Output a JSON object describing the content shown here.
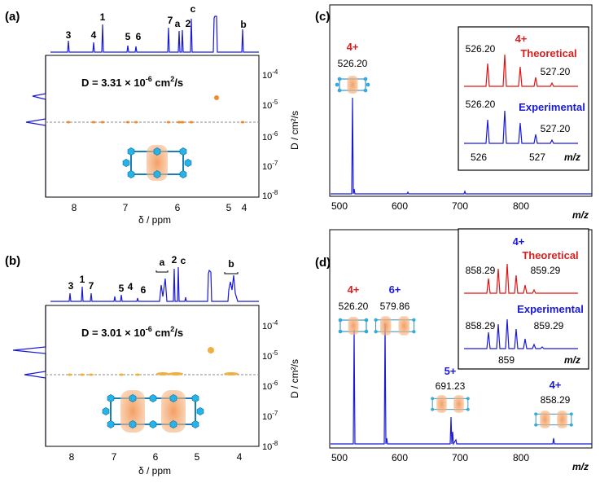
{
  "figure": {
    "panel_a": {
      "label": "(a)",
      "peaks": [
        "3",
        "4",
        "1",
        "5",
        "6",
        "7",
        "a",
        "2",
        "c",
        "b"
      ],
      "diffusion_text": "D = 3.31 × 10",
      "diffusion_exp": "-6",
      "diffusion_unit": " cm",
      "diffusion_unit_exp": "2",
      "diffusion_unit_end": "/s",
      "x_label": "δ / ppm",
      "x_ticks": [
        "8",
        "7",
        "6",
        "5",
        "4"
      ],
      "y_label": "D / cm²/s",
      "y_ticks": [
        {
          "base": "10",
          "exp": "-4"
        },
        {
          "base": "10",
          "exp": "-5"
        },
        {
          "base": "10",
          "exp": "-6"
        },
        {
          "base": "10",
          "exp": "-7"
        },
        {
          "base": "10",
          "exp": "-8"
        }
      ]
    },
    "panel_b": {
      "label": "(b)",
      "peaks": [
        "3",
        "1",
        "7",
        "5",
        "4",
        "6",
        "a",
        "2",
        "c",
        "b"
      ],
      "diffusion_text": "D = 3.01 × 10",
      "diffusion_exp": "-6",
      "diffusion_unit": " cm",
      "diffusion_unit_exp": "2",
      "diffusion_unit_end": "/s",
      "x_label": "δ / ppm",
      "x_ticks": [
        "8",
        "7",
        "6",
        "5",
        "4"
      ],
      "y_label": "D / cm²/s",
      "y_ticks": [
        {
          "base": "10",
          "exp": "-4"
        },
        {
          "base": "10",
          "exp": "-5"
        },
        {
          "base": "10",
          "exp": "-6"
        },
        {
          "base": "10",
          "exp": "-7"
        },
        {
          "base": "10",
          "exp": "-8"
        }
      ]
    },
    "panel_c": {
      "label": "(c)",
      "charge": "4+",
      "mz": "526.20",
      "x_ticks": [
        "500",
        "600",
        "700",
        "800"
      ],
      "x_unit": "m/z",
      "inset": {
        "charge": "4+",
        "theoretical": "Theoretical",
        "experimental": "Experimental",
        "theo_left": "526.20",
        "theo_right": "527.20",
        "exp_left": "526.20",
        "exp_right": "527.20",
        "ticks": [
          "526",
          "527"
        ],
        "unit": "m/z"
      }
    },
    "panel_d": {
      "label": "(d)",
      "peaks": [
        {
          "charge": "4+",
          "mz": "526.20",
          "color": "#d81e1e"
        },
        {
          "charge": "6+",
          "mz": "579.86",
          "color": "#d81e1e"
        },
        {
          "charge": "5+",
          "mz": "691.23",
          "color": "#1a1ad6"
        },
        {
          "charge": "4+",
          "mz": "858.29",
          "color": "#1a1ad6"
        }
      ],
      "x_ticks": [
        "500",
        "600",
        "700",
        "800"
      ],
      "x_unit": "m/z",
      "inset": {
        "charge": "4+",
        "theoretical": "Theoretical",
        "experimental": "Experimental",
        "theo_left": "858.29",
        "theo_right": "859.29",
        "exp_left": "858.29",
        "exp_right": "859.29",
        "ticks": [
          "859"
        ],
        "unit": "m/z"
      }
    },
    "colors": {
      "red": "#e01414",
      "blue": "#1a1ad6",
      "orange": "#f4a060",
      "cyan": "#2aa8d8"
    }
  }
}
